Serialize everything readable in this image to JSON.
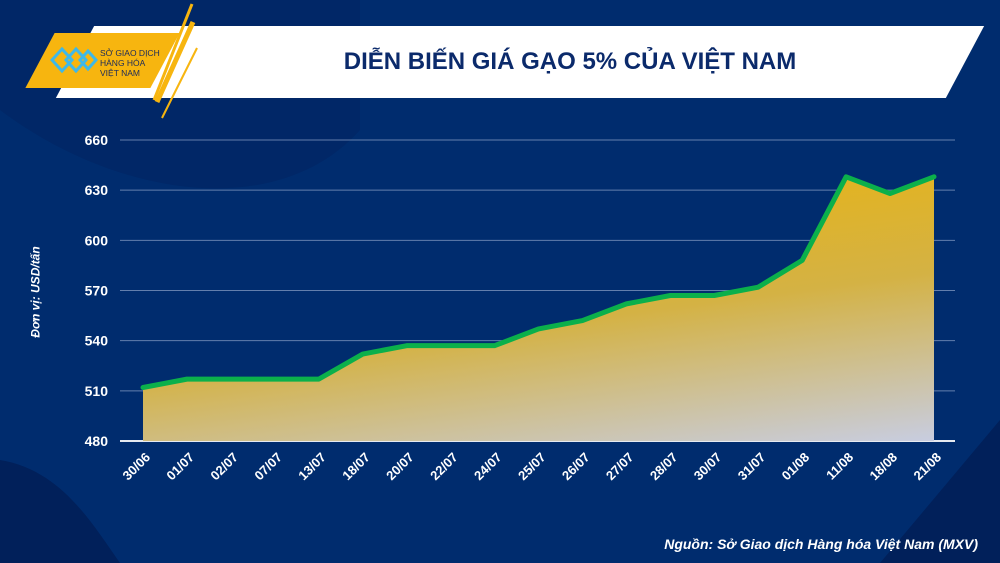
{
  "header": {
    "title": "DIỄN BIẾN GIÁ GẠO 5% CỦA VIỆT NAM",
    "logo_lines": [
      "SỞ GIAO DỊCH",
      "HÀNG HÓA",
      "VIỆT NAM"
    ]
  },
  "source": "Nguồn: Sở Giao dịch Hàng hóa Việt Nam (MXV)",
  "colors": {
    "background": "#002c6e",
    "line": "#0bb04b",
    "area": "#e0b020",
    "accent": "#f7b50f"
  },
  "chart_data": {
    "type": "area",
    "title": "DIỄN BIẾN GIÁ GẠO 5% CỦA VIỆT NAM",
    "ylabel": "Đơn vị: USD/tấn",
    "xlabel": "",
    "ylim": [
      480,
      660
    ],
    "yticks": [
      480,
      510,
      540,
      570,
      600,
      630,
      660
    ],
    "grid": true,
    "categories": [
      "30/06",
      "01/07",
      "02/07",
      "07/07",
      "13/07",
      "18/07",
      "20/07",
      "22/07",
      "24/07",
      "25/07",
      "26/07",
      "27/07",
      "28/07",
      "30/07",
      "31/07",
      "01/08",
      "11/08",
      "18/08",
      "21/08"
    ],
    "values": [
      512,
      517,
      517,
      517,
      517,
      532,
      537,
      537,
      537,
      547,
      552,
      562,
      567,
      567,
      572,
      588,
      638,
      628,
      638
    ]
  }
}
